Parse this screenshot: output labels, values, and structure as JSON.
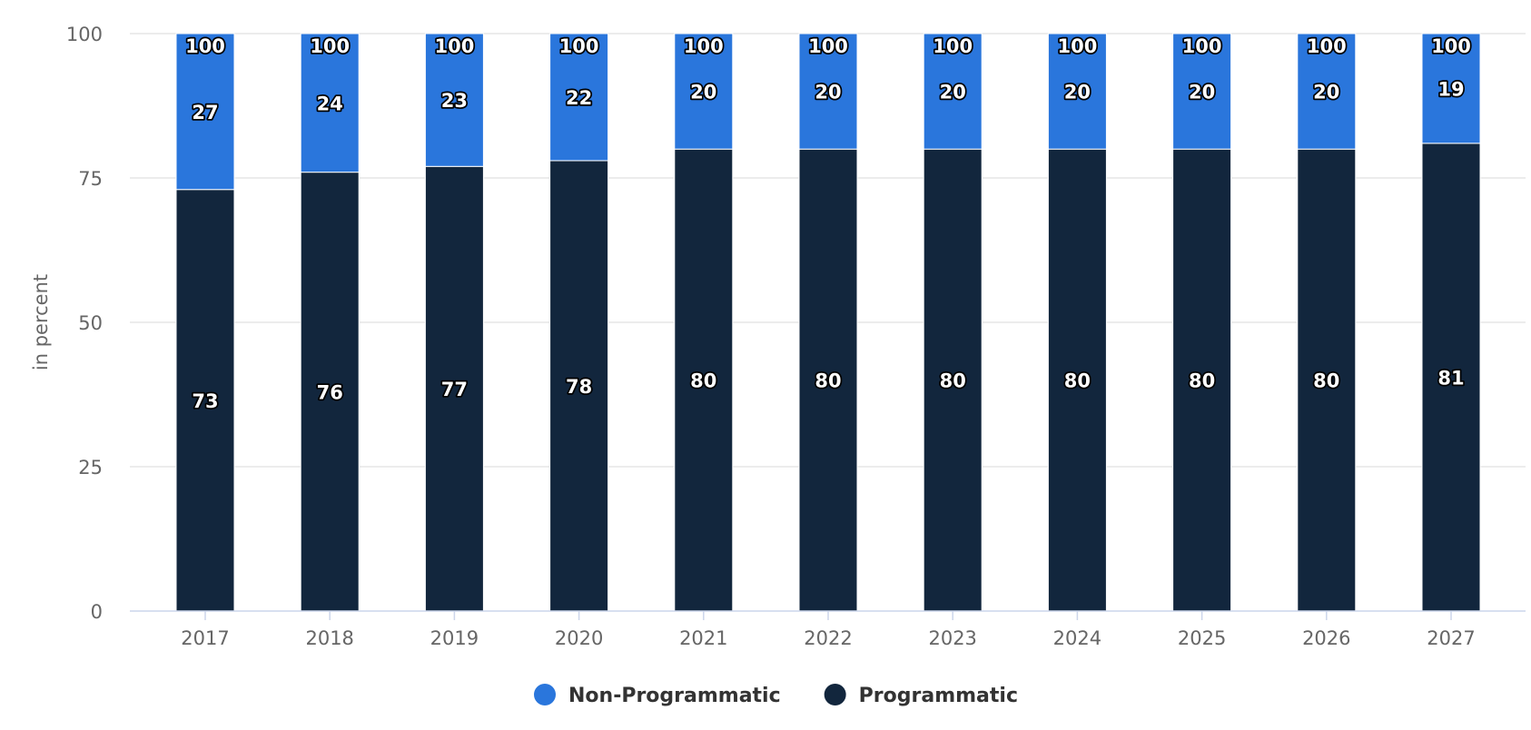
{
  "chart_data": {
    "type": "bar",
    "stacked": true,
    "categories": [
      "2017",
      "2018",
      "2019",
      "2020",
      "2021",
      "2022",
      "2023",
      "2024",
      "2025",
      "2026",
      "2027"
    ],
    "series": [
      {
        "name": "Programmatic",
        "color": "#12263d",
        "values": [
          73,
          76,
          77,
          78,
          80,
          80,
          80,
          80,
          80,
          80,
          81
        ]
      },
      {
        "name": "Non-Programmatic",
        "color": "#2a76dc",
        "values": [
          27,
          24,
          23,
          22,
          20,
          20,
          20,
          20,
          20,
          20,
          19
        ]
      }
    ],
    "totals": [
      100,
      100,
      100,
      100,
      100,
      100,
      100,
      100,
      100,
      100,
      100
    ],
    "title": "",
    "xlabel": "",
    "ylabel": "in percent",
    "ylim": [
      0,
      100
    ],
    "yticks": [
      0,
      25,
      50,
      75,
      100
    ],
    "grid": true,
    "legend": {
      "position": "bottom-center",
      "items": [
        {
          "label": "Non-Programmatic",
          "color": "#2a76dc"
        },
        {
          "label": "Programmatic",
          "color": "#12263d"
        }
      ]
    }
  }
}
